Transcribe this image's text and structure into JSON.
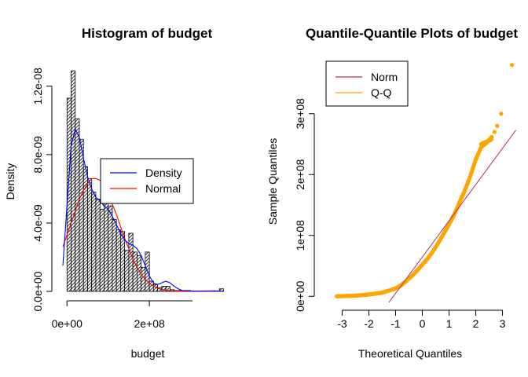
{
  "chart_data": [
    {
      "type": "histogram",
      "title": "Histogram of budget",
      "xlabel": "budget",
      "ylabel": "Density",
      "xlim": [
        -10000000,
        400000000
      ],
      "ylim": [
        0,
        1.3e-08
      ],
      "xticks": [
        0,
        200000000
      ],
      "xtick_labels": [
        "0e+00",
        "2e+08"
      ],
      "yticks": [
        0,
        4e-09,
        8e-09,
        1.2e-08
      ],
      "ytick_labels": [
        "0.0e+00",
        "4.0e-09",
        "8.0e-09",
        "1.2e-08"
      ],
      "bin_width": 10000000,
      "bin_start": 0,
      "densities": [
        1.13e-08,
        1.29e-08,
        1.01e-08,
        8.9e-09,
        7.3e-09,
        6.6e-09,
        5.8e-09,
        5.4e-09,
        4.8e-09,
        6.3e-09,
        5e-09,
        4.2e-09,
        3.6e-09,
        3.5e-09,
        2.4e-09,
        3.4e-09,
        2.3e-09,
        2.1e-09,
        1.4e-09,
        2.3e-09,
        6e-10,
        4e-10,
        2e-10,
        3e-10,
        3e-10,
        1e-10,
        5e-11,
        5e-11,
        5e-11,
        5e-11,
        0.0,
        0.0,
        0.0,
        0.0,
        0.0,
        0.0,
        0.0,
        0.0,
        0.0,
        0.0,
        0.0,
        0.0,
        0.0,
        0.0,
        0.0,
        0.0,
        0.0,
        0.0,
        0.0,
        0.0,
        0.0,
        0.0,
        0.0,
        0.0,
        0.0,
        0.0,
        0.0,
        0.0,
        0.0,
        0.0,
        0.0,
        0.0,
        0.0,
        0.0,
        0.0,
        0.0,
        0.0,
        0.0,
        0.0,
        0.0
      ],
      "outlier_bins": [
        {
          "x": 370000000,
          "density": 1.5e-10
        }
      ],
      "density_curve": {
        "name": "Density",
        "color": "#0000ff",
        "x": [
          -10000000,
          0,
          10000000,
          20000000,
          30000000,
          40000000,
          50000000,
          60000000,
          70000000,
          80000000,
          90000000,
          100000000,
          110000000,
          120000000,
          130000000,
          140000000,
          150000000,
          160000000,
          170000000,
          180000000,
          190000000,
          200000000,
          210000000,
          220000000,
          230000000,
          240000000,
          250000000,
          260000000,
          270000000,
          280000000,
          300000000,
          330000000,
          360000000,
          380000000
        ],
        "y": [
          1.5e-09,
          5e-09,
          8.5e-09,
          9.5e-09,
          9e-09,
          7.8e-09,
          6.7e-09,
          6e-09,
          5.5e-09,
          5.3e-09,
          5e-09,
          4.8e-09,
          4.4e-09,
          3.9e-09,
          3.4e-09,
          3e-09,
          2.8e-09,
          2.7e-09,
          2.5e-09,
          2.1e-09,
          1.5e-09,
          9e-10,
          5e-10,
          4e-10,
          5e-10,
          6e-10,
          5e-10,
          3e-10,
          1.5e-10,
          5e-11,
          2e-11,
          2e-11,
          3e-11,
          0.0
        ]
      },
      "normal_curve": {
        "name": "Normal",
        "color": "#ff0000",
        "x": [
          -10000000,
          0,
          10000000,
          20000000,
          30000000,
          40000000,
          50000000,
          60000000,
          70000000,
          80000000,
          90000000,
          100000000,
          110000000,
          120000000,
          130000000,
          140000000,
          150000000,
          160000000,
          170000000,
          180000000,
          190000000,
          200000000,
          220000000,
          240000000,
          260000000,
          280000000,
          300000000,
          330000000,
          360000000,
          380000000
        ],
        "y": [
          2.6e-09,
          3.3e-09,
          4e-09,
          4.7e-09,
          5.4e-09,
          5.9e-09,
          6.3e-09,
          6.6e-09,
          6.6e-09,
          6.5e-09,
          6.2e-09,
          5.7e-09,
          5.1e-09,
          4.5e-09,
          3.8e-09,
          3.1e-09,
          2.5e-09,
          1.9e-09,
          1.4e-09,
          1e-09,
          7e-10,
          4.5e-10,
          1.8e-10,
          6e-11,
          2e-11,
          5e-12,
          0.0,
          0.0,
          0.0,
          0.0
        ]
      },
      "legend": {
        "placement": "right",
        "entries": [
          {
            "label": "Density",
            "color": "#0000ff"
          },
          {
            "label": "Normal",
            "color": "#ff0000"
          }
        ]
      }
    },
    {
      "type": "scatter",
      "title": "Quantile-Quantile Plots of budget",
      "xlabel": "Theoretical Quantiles",
      "ylabel": "Sample Quantiles",
      "xlim": [
        -3.6,
        3.6
      ],
      "ylim": [
        -10000000,
        390000000
      ],
      "xticks": [
        -3,
        -2,
        -1,
        0,
        1,
        2,
        3
      ],
      "xtick_labels": [
        "-3",
        "-2",
        "-1",
        "0",
        "1",
        "2",
        "3"
      ],
      "yticks": [
        0,
        100000000,
        200000000,
        300000000
      ],
      "ytick_labels": [
        "0e+00",
        "1e+08",
        "2e+08",
        "3e+08"
      ],
      "points_color": "#ffa500",
      "quantile_knots": {
        "x": [
          -3.2,
          -2.5,
          -2.0,
          -1.5,
          -1.2,
          -1.0,
          -0.8,
          -0.6,
          -0.4,
          -0.2,
          0.0,
          0.2,
          0.4,
          0.6,
          0.8,
          1.0,
          1.2,
          1.4,
          1.6,
          1.8,
          2.0,
          2.2,
          2.4,
          2.6
        ],
        "y": [
          0,
          1000000,
          3000000,
          6000000,
          10000000,
          13000000,
          18000000,
          25000000,
          33000000,
          42000000,
          52000000,
          62000000,
          74000000,
          88000000,
          103000000,
          118000000,
          135000000,
          155000000,
          175000000,
          198000000,
          225000000,
          245000000,
          252000000,
          262000000
        ]
      },
      "extreme_points": [
        {
          "x": 2.7,
          "y": 270000000
        },
        {
          "x": 2.8,
          "y": 280000000
        },
        {
          "x": 2.95,
          "y": 300000000
        },
        {
          "x": 3.35,
          "y": 380000000
        }
      ],
      "reference_line": {
        "name": "Norm",
        "color": "#b03060",
        "points": [
          [
            -1.25,
            -10000000
          ],
          [
            3.5,
            273000000
          ]
        ]
      },
      "legend": {
        "placement": "top-left",
        "entries": [
          {
            "label": "Norm",
            "color": "#b03060"
          },
          {
            "label": "Q-Q",
            "color": "#ffa500"
          }
        ]
      }
    }
  ]
}
